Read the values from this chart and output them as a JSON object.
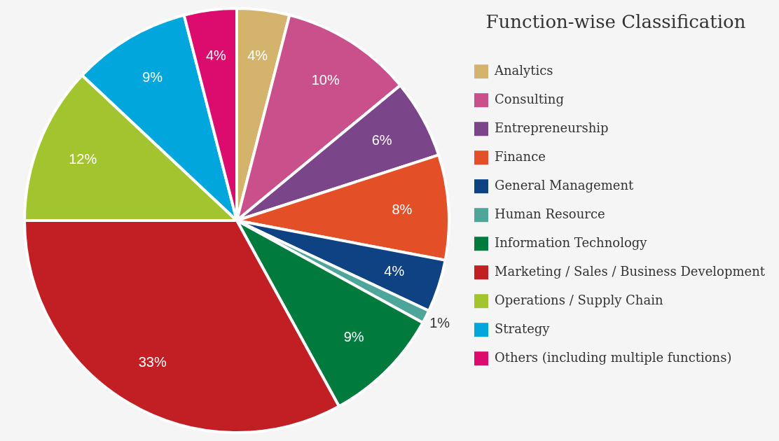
{
  "chart_data": {
    "type": "pie",
    "legend_title": "Function-wise Classification",
    "legend": "right",
    "categories": [
      "Analytics",
      "Consulting",
      "Entrepreneurship",
      "Finance",
      "General Management",
      "Human Resource",
      "Information Technology",
      "Marketing / Sales / Business Development",
      "Operations / Supply Chain",
      "Strategy",
      "Others (including multiple functions)"
    ],
    "values": [
      4,
      10,
      6,
      8,
      4,
      1,
      9,
      33,
      12,
      9,
      4
    ],
    "value_labels": [
      "4%",
      "10%",
      "6%",
      "8%",
      "4%",
      "1%",
      "9%",
      "33%",
      "12%",
      "9%",
      "4%"
    ],
    "colors": [
      "#d4b46c",
      "#c9508a",
      "#7b4589",
      "#e34f26",
      "#0f4283",
      "#4ea69a",
      "#007a3d",
      "#c11f24",
      "#a2c52f",
      "#00a6dc",
      "#db0c6e"
    ]
  }
}
